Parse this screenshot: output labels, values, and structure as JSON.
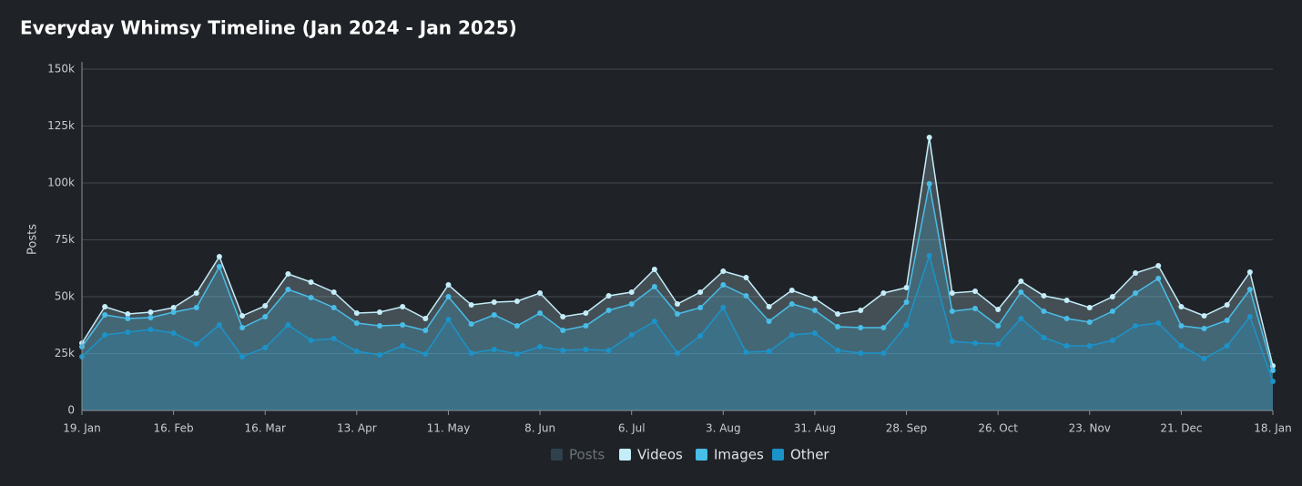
{
  "chart_data": {
    "type": "area",
    "title": "Everyday Whimsy Timeline (Jan 2024 - Jan 2025)",
    "y_label": "Posts",
    "categories": [
      "19. Jan",
      null,
      null,
      null,
      "16. Feb",
      null,
      null,
      null,
      "16. Mar",
      null,
      null,
      null,
      "13. Apr",
      null,
      null,
      null,
      "11. May",
      null,
      null,
      null,
      "8. Jun",
      null,
      null,
      null,
      "6. Jul",
      null,
      null,
      null,
      "3. Aug",
      null,
      null,
      null,
      "31. Aug",
      null,
      null,
      null,
      "28. Sep",
      null,
      null,
      null,
      "26. Oct",
      null,
      null,
      null,
      "23. Nov",
      null,
      null,
      null,
      "21. Dec",
      null,
      null,
      null,
      "18. Jan"
    ],
    "series": [
      {
        "name": "Posts",
        "color": "#3a5566",
        "visible": false
      },
      {
        "name": "Videos",
        "color": "#c4ecf9",
        "values": [
          29600,
          45600,
          42400,
          43200,
          45200,
          51600,
          67600,
          41600,
          46000,
          60000,
          56400,
          52000,
          42800,
          43200,
          45600,
          40400,
          55200,
          46400,
          47600,
          48000,
          51600,
          41200,
          42800,
          50400,
          52000,
          62000,
          46800,
          52000,
          61200,
          58400,
          45600,
          52800,
          49200,
          42400,
          44000,
          51600,
          54000,
          120000,
          51600,
          52400,
          44400,
          56800,
          50400,
          48400,
          45200,
          50000,
          60400,
          63600,
          45600,
          41600,
          46400,
          60800,
          19600
        ]
      },
      {
        "name": "Images",
        "color": "#48bde8",
        "values": [
          28000,
          42000,
          40400,
          40800,
          43200,
          45200,
          63200,
          36400,
          41200,
          53200,
          49600,
          45200,
          38400,
          37200,
          37600,
          35200,
          50000,
          38000,
          42000,
          37200,
          42800,
          35200,
          37200,
          44000,
          46800,
          54400,
          42400,
          45200,
          55200,
          50400,
          39200,
          46800,
          44000,
          36800,
          36400,
          36400,
          47600,
          99600,
          43600,
          44800,
          37200,
          52000,
          43600,
          40400,
          38800,
          43600,
          51600,
          58000,
          37200,
          36000,
          39600,
          53200,
          17600
        ]
      },
      {
        "name": "Other",
        "color": "#1b93c9",
        "values": [
          23600,
          33200,
          34400,
          35600,
          34000,
          29200,
          37600,
          23600,
          27600,
          37600,
          30800,
          31600,
          26000,
          24400,
          28400,
          24800,
          40000,
          25200,
          26800,
          24800,
          28000,
          26400,
          26800,
          26400,
          33200,
          39200,
          25200,
          32800,
          45200,
          25600,
          26000,
          33200,
          34000,
          26400,
          25200,
          25200,
          37600,
          68000,
          30400,
          29600,
          29200,
          40400,
          32000,
          28400,
          28400,
          30800,
          37200,
          38400,
          28400,
          22800,
          28400,
          41200,
          12800
        ]
      }
    ],
    "ylim": [
      0,
      150000
    ],
    "yticks": [
      0,
      {
        "value": 25000,
        "label": "25k"
      },
      {
        "value": 50000,
        "label": "50k"
      },
      {
        "value": 75000,
        "label": "75k"
      },
      {
        "value": 100000,
        "label": "100k"
      },
      {
        "value": 125000,
        "label": "125k"
      },
      {
        "value": 150000,
        "label": "150k"
      }
    ],
    "grid": true,
    "legend": "bottom"
  }
}
